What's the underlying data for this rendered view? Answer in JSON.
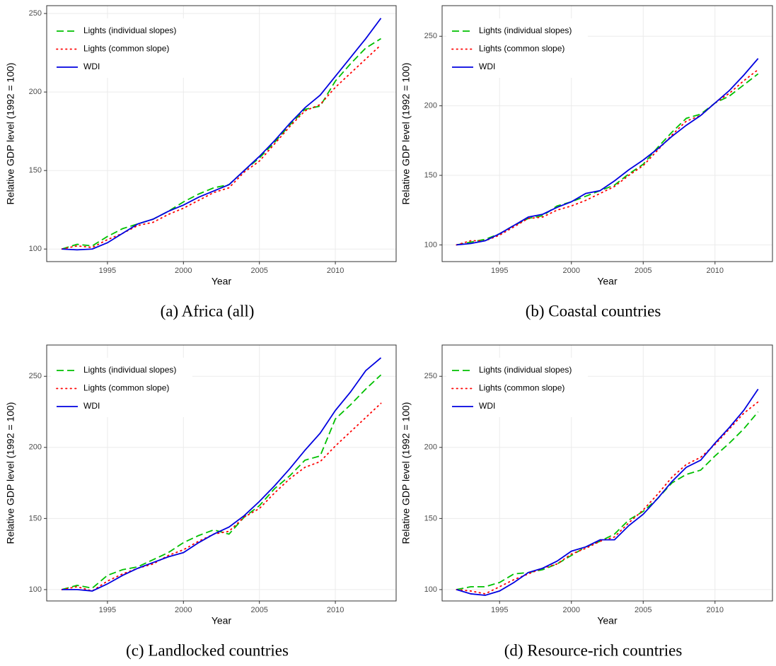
{
  "chart_data": [
    {
      "type": "line",
      "caption": "(a) Africa (all)",
      "x_label": "Year",
      "y_label": "Relative GDP level (1992 = 100)",
      "x": [
        1992,
        1993,
        1994,
        1995,
        1996,
        1997,
        1998,
        1999,
        2000,
        2001,
        2002,
        2003,
        2004,
        2005,
        2006,
        2007,
        2008,
        2009,
        2010,
        2011,
        2012,
        2013
      ],
      "xlim": [
        1991,
        2014
      ],
      "xticks": [
        1995,
        2000,
        2005,
        2010
      ],
      "ylim": [
        92,
        255
      ],
      "yticks": [
        100,
        150,
        200,
        250
      ],
      "grid": true,
      "legend": "top-left",
      "series": [
        {
          "name": "Lights (individual slopes)",
          "color": "#00c000",
          "dash": "longdash",
          "values": [
            100,
            103,
            102,
            108,
            113,
            116,
            119,
            124,
            130,
            135,
            139,
            141,
            150,
            158,
            168,
            179,
            189,
            191,
            207,
            218,
            228,
            234
          ]
        },
        {
          "name": "Lights (common slope)",
          "color": "#ff0000",
          "dash": "dotted",
          "values": [
            100,
            102,
            101,
            106,
            110,
            115,
            117,
            122,
            126,
            131,
            136,
            139,
            149,
            156,
            167,
            178,
            188,
            192,
            203,
            212,
            221,
            230
          ]
        },
        {
          "name": "WDI",
          "color": "#0000e0",
          "dash": "solid",
          "values": [
            100,
            99.5,
            100,
            104,
            110,
            116,
            119,
            124,
            128,
            133,
            137,
            141,
            150,
            159,
            169,
            180,
            190,
            198,
            210,
            222,
            234,
            247
          ]
        }
      ]
    },
    {
      "type": "line",
      "caption": "(b) Coastal countries",
      "x_label": "Year",
      "y_label": "Relative GDP level (1992 = 100)",
      "x": [
        1992,
        1993,
        1994,
        1995,
        1996,
        1997,
        1998,
        1999,
        2000,
        2001,
        2002,
        2003,
        2004,
        2005,
        2006,
        2007,
        2008,
        2009,
        2010,
        2011,
        2012,
        2013
      ],
      "xlim": [
        1991,
        2014
      ],
      "xticks": [
        1995,
        2000,
        2005,
        2010
      ],
      "ylim": [
        88,
        272
      ],
      "yticks": [
        100,
        150,
        200,
        250
      ],
      "grid": true,
      "legend": "top-left",
      "series": [
        {
          "name": "Lights (individual slopes)",
          "color": "#00c000",
          "dash": "longdash",
          "values": [
            100,
            102,
            104,
            108,
            114,
            119,
            121,
            128,
            131,
            135,
            139,
            143,
            151,
            158,
            170,
            181,
            191,
            194,
            202,
            207,
            215,
            223
          ]
        },
        {
          "name": "Lights (common slope)",
          "color": "#ff0000",
          "dash": "dotted",
          "values": [
            100,
            103,
            103,
            107,
            113,
            119,
            120,
            125,
            128,
            132,
            137,
            142,
            150,
            157,
            168,
            179,
            189,
            193,
            202,
            209,
            218,
            226
          ]
        },
        {
          "name": "WDI",
          "color": "#0000e0",
          "dash": "solid",
          "values": [
            100,
            101,
            103,
            108,
            114,
            120,
            122,
            127,
            131,
            137,
            139,
            146,
            154,
            161,
            169,
            178,
            186,
            193,
            202,
            211,
            222,
            234
          ]
        }
      ]
    },
    {
      "type": "line",
      "caption": "(c) Landlocked countries",
      "x_label": "Year",
      "y_label": "Relative GDP level (1992 = 100)",
      "x": [
        1992,
        1993,
        1994,
        1995,
        1996,
        1997,
        1998,
        1999,
        2000,
        2001,
        2002,
        2003,
        2004,
        2005,
        2006,
        2007,
        2008,
        2009,
        2010,
        2011,
        2012,
        2013
      ],
      "xlim": [
        1991,
        2014
      ],
      "xticks": [
        1995,
        2000,
        2005,
        2010
      ],
      "ylim": [
        92,
        272
      ],
      "yticks": [
        100,
        150,
        200,
        250
      ],
      "grid": true,
      "legend": "top-left",
      "series": [
        {
          "name": "Lights (individual slopes)",
          "color": "#00c000",
          "dash": "longdash",
          "values": [
            100,
            103,
            101,
            110,
            114,
            116,
            121,
            126,
            133,
            138,
            142,
            139,
            151,
            159,
            171,
            180,
            191,
            194,
            220,
            230,
            241,
            251
          ]
        },
        {
          "name": "Lights (common slope)",
          "color": "#ff0000",
          "dash": "dotted",
          "values": [
            100,
            102,
            99,
            106,
            111,
            115,
            118,
            124,
            128,
            134,
            139,
            141,
            151,
            157,
            168,
            178,
            186,
            190,
            201,
            211,
            221,
            231
          ]
        },
        {
          "name": "WDI",
          "color": "#0000e0",
          "dash": "solid",
          "values": [
            100,
            100,
            99,
            104,
            110,
            115,
            119,
            123,
            126,
            133,
            139,
            144,
            152,
            162,
            173,
            185,
            198,
            210,
            226,
            239,
            254,
            263
          ]
        }
      ]
    },
    {
      "type": "line",
      "caption": "(d) Resource-rich countries",
      "x_label": "Year",
      "y_label": "Relative GDP level (1992 = 100)",
      "x": [
        1992,
        1993,
        1994,
        1995,
        1996,
        1997,
        1998,
        1999,
        2000,
        2001,
        2002,
        2003,
        2004,
        2005,
        2006,
        2007,
        2008,
        2009,
        2010,
        2011,
        2012,
        2013
      ],
      "xlim": [
        1991,
        2014
      ],
      "xticks": [
        1995,
        2000,
        2005,
        2010
      ],
      "ylim": [
        92,
        272
      ],
      "yticks": [
        100,
        150,
        200,
        250
      ],
      "grid": true,
      "legend": "top-left",
      "series": [
        {
          "name": "Lights (individual slopes)",
          "color": "#00c000",
          "dash": "longdash",
          "values": [
            100,
            102,
            102,
            105,
            111,
            112,
            114,
            118,
            124,
            130,
            134,
            139,
            149,
            155,
            164,
            175,
            181,
            184,
            194,
            203,
            213,
            225
          ]
        },
        {
          "name": "Lights (common slope)",
          "color": "#ff0000",
          "dash": "dotted",
          "values": [
            100,
            99,
            97,
            102,
            107,
            111,
            115,
            118,
            125,
            129,
            134,
            137,
            147,
            156,
            167,
            179,
            188,
            193,
            202,
            213,
            224,
            232
          ]
        },
        {
          "name": "WDI",
          "color": "#0000e0",
          "dash": "solid",
          "values": [
            100,
            97,
            96,
            99,
            105,
            112,
            115,
            120,
            127,
            130,
            135,
            135,
            145,
            153,
            164,
            176,
            186,
            191,
            203,
            214,
            226,
            241
          ]
        }
      ]
    }
  ]
}
